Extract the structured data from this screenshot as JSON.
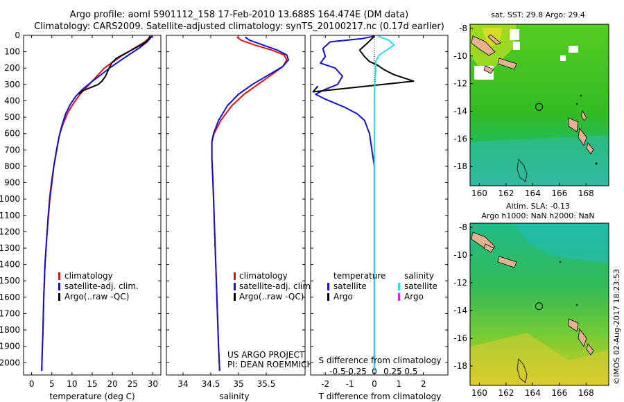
{
  "header": {
    "line1": "Argo profile: aoml 5901112_158 17-Feb-2010 13.688S 164.474E (DM data)",
    "line2": "Climatology: CARS2009. Satellite-adjusted climatology: synTS_20100217.nc (0.17d earlier)"
  },
  "colors": {
    "climatology": "#e01010",
    "satellite": "#1010d0",
    "argo": "#000000",
    "salinity_satellite": "#22dde8",
    "salinity_argo": "#dd22dd"
  },
  "chart_data": [
    {
      "id": "temperature",
      "type": "line",
      "xlabel": "temperature (deg C)",
      "xlim": [
        -2,
        32
      ],
      "xticks": [
        0,
        5,
        10,
        15,
        20,
        25,
        30
      ],
      "ylim": [
        0,
        2075
      ],
      "yticks": [
        0,
        100,
        200,
        300,
        400,
        500,
        600,
        700,
        800,
        900,
        1000,
        1100,
        1200,
        1300,
        1400,
        1500,
        1600,
        1700,
        1800,
        1900,
        2000
      ],
      "legend": {
        "position": "lower-center",
        "entries": [
          "climatology",
          "satellite-adj. clim.",
          "Argo(..raw -QC)"
        ]
      },
      "series": [
        {
          "name": "climatology",
          "color": "#e01010",
          "points": [
            [
              29.6,
              5
            ],
            [
              28,
              40
            ],
            [
              26,
              70
            ],
            [
              24,
              100
            ],
            [
              22,
              130
            ],
            [
              20,
              165
            ],
            [
              18,
              200
            ],
            [
              16.5,
              240
            ],
            [
              15,
              280
            ],
            [
              13.5,
              320
            ],
            [
              12,
              360
            ],
            [
              10.5,
              410
            ],
            [
              9,
              470
            ],
            [
              7.8,
              540
            ],
            [
              7,
              600
            ],
            [
              6.3,
              680
            ],
            [
              5.6,
              780
            ],
            [
              5,
              880
            ],
            [
              4.5,
              980
            ],
            [
              4.1,
              1100
            ],
            [
              3.7,
              1250
            ],
            [
              3.3,
              1400
            ],
            [
              3,
              1600
            ],
            [
              2.8,
              1800
            ],
            [
              2.6,
              1950
            ],
            [
              2.5,
              2050
            ]
          ]
        },
        {
          "name": "satellite-adj. clim.",
          "color": "#1010d0",
          "points": [
            [
              29.8,
              5
            ],
            [
              28.6,
              40
            ],
            [
              26.8,
              75
            ],
            [
              24.6,
              110
            ],
            [
              22.2,
              150
            ],
            [
              19.6,
              195
            ],
            [
              17.2,
              240
            ],
            [
              14.8,
              285
            ],
            [
              12.6,
              330
            ],
            [
              11,
              370
            ],
            [
              9.6,
              420
            ],
            [
              8.4,
              480
            ],
            [
              7.5,
              550
            ],
            [
              6.8,
              620
            ],
            [
              6.2,
              700
            ],
            [
              5.5,
              800
            ],
            [
              5,
              900
            ],
            [
              4.5,
              1000
            ],
            [
              4.1,
              1120
            ],
            [
              3.7,
              1250
            ],
            [
              3.3,
              1400
            ],
            [
              3,
              1600
            ],
            [
              2.8,
              1800
            ],
            [
              2.6,
              1950
            ],
            [
              2.5,
              2050
            ]
          ]
        },
        {
          "name": "Argo(..raw -QC)",
          "color": "#000000",
          "points": [
            [
              29.3,
              5
            ],
            [
              29,
              20
            ],
            [
              28.4,
              40
            ],
            [
              27,
              60
            ],
            [
              25.5,
              80
            ],
            [
              24,
              100
            ],
            [
              22.5,
              120
            ],
            [
              21,
              140
            ],
            [
              19.8,
              170
            ],
            [
              19,
              210
            ],
            [
              18.3,
              250
            ],
            [
              17.4,
              280
            ],
            [
              16.5,
              300
            ],
            [
              14.5,
              320
            ],
            [
              12.5,
              340
            ],
            [
              11.7,
              360
            ]
          ]
        }
      ]
    },
    {
      "id": "salinity",
      "type": "line",
      "xlabel": "salinity",
      "xlim": [
        33.7,
        36.2
      ],
      "xticks": [
        34,
        34.5,
        35,
        35.5
      ],
      "ylim": [
        0,
        2075
      ],
      "legend": {
        "position": "lower-center",
        "entries": [
          "climatology",
          "satellite-adj. clim.",
          "Argo(..raw -QC)"
        ]
      },
      "annotation": [
        "US ARGO PROJECT",
        "PI: DEAN ROEMMICH"
      ],
      "series": [
        {
          "name": "climatology",
          "color": "#e01010",
          "points": [
            [
              34.97,
              10
            ],
            [
              35.05,
              30
            ],
            [
              35.3,
              60
            ],
            [
              35.6,
              90
            ],
            [
              35.82,
              120
            ],
            [
              35.87,
              150
            ],
            [
              35.8,
              190
            ],
            [
              35.6,
              240
            ],
            [
              35.35,
              300
            ],
            [
              35.1,
              360
            ],
            [
              34.88,
              430
            ],
            [
              34.68,
              520
            ],
            [
              34.56,
              600
            ],
            [
              34.52,
              650
            ],
            [
              34.52,
              750
            ],
            [
              34.54,
              900
            ],
            [
              34.56,
              1100
            ],
            [
              34.58,
              1300
            ],
            [
              34.6,
              1500
            ],
            [
              34.62,
              1700
            ],
            [
              34.64,
              1900
            ],
            [
              34.66,
              2050
            ]
          ]
        },
        {
          "name": "satellite-adj. clim.",
          "color": "#1010d0",
          "points": [
            [
              35.12,
              10
            ],
            [
              35.2,
              30
            ],
            [
              35.45,
              60
            ],
            [
              35.7,
              90
            ],
            [
              35.87,
              120
            ],
            [
              35.9,
              150
            ],
            [
              35.8,
              190
            ],
            [
              35.55,
              240
            ],
            [
              35.25,
              300
            ],
            [
              35,
              360
            ],
            [
              34.8,
              430
            ],
            [
              34.64,
              520
            ],
            [
              34.55,
              600
            ],
            [
              34.52,
              650
            ],
            [
              34.52,
              750
            ],
            [
              34.54,
              900
            ],
            [
              34.56,
              1100
            ],
            [
              34.58,
              1300
            ],
            [
              34.6,
              1500
            ],
            [
              34.62,
              1700
            ],
            [
              34.64,
              1900
            ],
            [
              34.66,
              2050
            ]
          ]
        }
      ]
    },
    {
      "id": "difference",
      "type": "line",
      "xlabel": "T difference from climatology",
      "toplabel": "S difference from climatology",
      "xlim": [
        -2.6,
        3.0
      ],
      "xticks": [
        -2,
        -1,
        0,
        1,
        2
      ],
      "sticks": [
        -0.5,
        -0.25,
        0,
        0.25,
        0.5
      ],
      "sticklabels": [
        "-0.5",
        "-0.25",
        "0",
        "0.25",
        "0.5"
      ],
      "ylim": [
        0,
        2075
      ],
      "legend_title_left": "temperature",
      "legend_title_right": "salinity",
      "legend_left": [
        "satellite",
        "Argo"
      ],
      "legend_right": [
        "satellite",
        "Argo"
      ],
      "series": [
        {
          "name": "temperature satellite",
          "color": "#1010d0",
          "points": [
            [
              0,
              5
            ],
            [
              -0.5,
              20
            ],
            [
              -1.8,
              40
            ],
            [
              -2.1,
              80
            ],
            [
              -2.0,
              130
            ],
            [
              -2.2,
              170
            ],
            [
              -1.6,
              200
            ],
            [
              -1.3,
              250
            ],
            [
              -1.5,
              300
            ],
            [
              -2.0,
              330
            ],
            [
              -2.4,
              360
            ],
            [
              -2.0,
              390
            ],
            [
              -1.2,
              440
            ],
            [
              -0.7,
              480
            ],
            [
              -0.4,
              520
            ],
            [
              -0.2,
              600
            ],
            [
              -0.1,
              700
            ],
            [
              0,
              800
            ],
            [
              0,
              1000
            ],
            [
              0,
              1200
            ],
            [
              0,
              1500
            ],
            [
              0,
              1800
            ],
            [
              0,
              2050
            ]
          ]
        },
        {
          "name": "temperature Argo",
          "color": "#000000",
          "points": [
            [
              0,
              5
            ],
            [
              -0.3,
              50
            ],
            [
              -0.6,
              90
            ],
            [
              -0.4,
              130
            ],
            [
              -0.2,
              160
            ],
            [
              0.1,
              180
            ],
            [
              0.4,
              210
            ],
            [
              0.8,
              240
            ],
            [
              1.6,
              280
            ],
            [
              -2.5,
              345
            ],
            [
              -2.3,
              310
            ]
          ]
        },
        {
          "name": "salinity satellite",
          "color": "#22dde8",
          "points": [
            [
              0.15,
              5
            ],
            [
              0.6,
              30
            ],
            [
              0.8,
              60
            ],
            [
              0.5,
              90
            ],
            [
              0.2,
              120
            ],
            [
              0.05,
              160
            ],
            [
              0.05,
              220
            ],
            [
              0.02,
              300
            ],
            [
              0,
              400
            ],
            [
              0,
              500
            ],
            [
              0,
              700
            ],
            [
              0,
              1000
            ],
            [
              0,
              1500
            ],
            [
              0,
              2050
            ]
          ]
        }
      ]
    }
  ],
  "maps": [
    {
      "id": "sst",
      "title": "sat. SST: 29.8 Argo: 29.4",
      "xticks": [
        "160",
        "162",
        "164",
        "166",
        "168"
      ],
      "yticks": [
        "-8",
        "-10",
        "-12",
        "-14",
        "-16",
        "-18"
      ],
      "xlim": [
        159.3,
        169.7
      ],
      "ylim": [
        -19.4,
        -7.7
      ],
      "marker": [
        164.474,
        -13.688
      ]
    },
    {
      "id": "sla",
      "title1": "Altim. SLA: -0.13",
      "title2": "Argo h1000: NaN h2000: NaN",
      "xticks": [
        "160",
        "162",
        "164",
        "166",
        "168"
      ],
      "yticks": [
        "-8",
        "-10",
        "-12",
        "-14",
        "-16",
        "-18"
      ],
      "xlim": [
        159.3,
        169.7
      ],
      "ylim": [
        -19.4,
        -7.7
      ],
      "marker": [
        164.474,
        -13.688
      ]
    }
  ],
  "footer": {
    "credit": "©IMOS 02-Aug-2017 18:23:53"
  }
}
